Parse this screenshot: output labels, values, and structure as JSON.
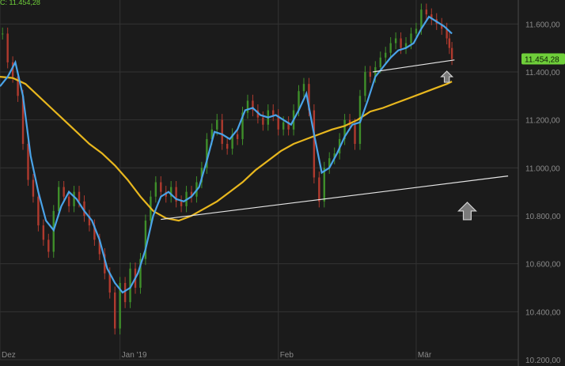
{
  "header": {
    "text": "C: 11.454,28"
  },
  "colors": {
    "background": "#1b1b1b",
    "grid": "#333333",
    "axis_text": "#8a8a8a",
    "candle_up": "#3f8f2a",
    "candle_down": "#b03a2e",
    "ma_fast": "#4aa3e8",
    "ma_slow": "#e8b71e",
    "trendline": "#e6e6e6",
    "last_price_bg": "#6fcf3a",
    "arrow_fill": "#7a7a7a",
    "arrow_stroke": "#d0d0d0"
  },
  "chart_data": {
    "type": "line",
    "grid": true,
    "ylim": [
      10200,
      11700
    ],
    "y_ticks": [
      "11.600,00",
      "11.400,00",
      "11.200,00",
      "11.000,00",
      "10.800,00",
      "10.600,00",
      "10.400,00",
      "10.200,00"
    ],
    "x_ticks": [
      {
        "label": "Dez",
        "t": 0
      },
      {
        "label": "Jan '19",
        "t": 47
      },
      {
        "label": "Feb",
        "t": 109
      },
      {
        "label": "Mär",
        "t": 163
      }
    ],
    "t_max": 203,
    "last_price": {
      "value": 11454.28,
      "label": "11.454,28"
    },
    "price_series": [
      [
        1,
        11560
      ],
      [
        3,
        11440
      ],
      [
        5,
        11380
      ],
      [
        7,
        11300
      ],
      [
        9,
        11100
      ],
      [
        11,
        10950
      ],
      [
        13,
        10880
      ],
      [
        15,
        10760
      ],
      [
        17,
        10700
      ],
      [
        19,
        10650
      ],
      [
        21,
        10820
      ],
      [
        23,
        10920
      ],
      [
        25,
        10880
      ],
      [
        27,
        10840
      ],
      [
        29,
        10900
      ],
      [
        31,
        10860
      ],
      [
        33,
        10800
      ],
      [
        35,
        10760
      ],
      [
        37,
        10700
      ],
      [
        39,
        10640
      ],
      [
        41,
        10560
      ],
      [
        43,
        10480
      ],
      [
        45,
        10330
      ],
      [
        47,
        10520
      ],
      [
        49,
        10440
      ],
      [
        51,
        10580
      ],
      [
        53,
        10500
      ],
      [
        55,
        10620
      ],
      [
        57,
        10780
      ],
      [
        59,
        10880
      ],
      [
        61,
        10940
      ],
      [
        63,
        10900
      ],
      [
        65,
        10880
      ],
      [
        67,
        10920
      ],
      [
        69,
        10860
      ],
      [
        71,
        10840
      ],
      [
        73,
        10900
      ],
      [
        75,
        10880
      ],
      [
        77,
        10940
      ],
      [
        79,
        11000
      ],
      [
        81,
        11120
      ],
      [
        83,
        11160
      ],
      [
        85,
        11200
      ],
      [
        87,
        11100
      ],
      [
        89,
        11080
      ],
      [
        91,
        11140
      ],
      [
        93,
        11120
      ],
      [
        95,
        11230
      ],
      [
        97,
        11280
      ],
      [
        99,
        11240
      ],
      [
        101,
        11210
      ],
      [
        103,
        11180
      ],
      [
        105,
        11240
      ],
      [
        107,
        11220
      ],
      [
        109,
        11160
      ],
      [
        111,
        11190
      ],
      [
        113,
        11160
      ],
      [
        115,
        11240
      ],
      [
        117,
        11320
      ],
      [
        119,
        11350
      ],
      [
        121,
        11240
      ],
      [
        123,
        10960
      ],
      [
        125,
        10860
      ],
      [
        127,
        11000
      ],
      [
        129,
        11040
      ],
      [
        131,
        11060
      ],
      [
        133,
        11120
      ],
      [
        135,
        11200
      ],
      [
        137,
        11180
      ],
      [
        139,
        11100
      ],
      [
        141,
        11300
      ],
      [
        143,
        11400
      ],
      [
        145,
        11380
      ],
      [
        147,
        11420
      ],
      [
        149,
        11460
      ],
      [
        151,
        11480
      ],
      [
        153,
        11520
      ],
      [
        155,
        11540
      ],
      [
        157,
        11500
      ],
      [
        159,
        11520
      ],
      [
        161,
        11560
      ],
      [
        163,
        11580
      ],
      [
        165,
        11660
      ],
      [
        167,
        11640
      ],
      [
        169,
        11620
      ],
      [
        171,
        11600
      ],
      [
        173,
        11580
      ],
      [
        175,
        11540
      ],
      [
        176,
        11500
      ],
      [
        177,
        11454
      ]
    ],
    "series": [
      {
        "values": [
          [
            0,
            11340
          ],
          [
            3,
            11380
          ],
          [
            6,
            11440
          ],
          [
            9,
            11300
          ],
          [
            12,
            11050
          ],
          [
            15,
            10900
          ],
          [
            18,
            10780
          ],
          [
            21,
            10740
          ],
          [
            24,
            10840
          ],
          [
            27,
            10900
          ],
          [
            30,
            10870
          ],
          [
            33,
            10820
          ],
          [
            36,
            10780
          ],
          [
            39,
            10700
          ],
          [
            42,
            10580
          ],
          [
            45,
            10520
          ],
          [
            48,
            10480
          ],
          [
            51,
            10500
          ],
          [
            54,
            10560
          ],
          [
            57,
            10660
          ],
          [
            60,
            10800
          ],
          [
            63,
            10880
          ],
          [
            66,
            10900
          ],
          [
            69,
            10870
          ],
          [
            72,
            10860
          ],
          [
            75,
            10880
          ],
          [
            78,
            10920
          ],
          [
            81,
            11030
          ],
          [
            84,
            11150
          ],
          [
            87,
            11140
          ],
          [
            90,
            11120
          ],
          [
            93,
            11160
          ],
          [
            96,
            11240
          ],
          [
            99,
            11250
          ],
          [
            102,
            11220
          ],
          [
            105,
            11210
          ],
          [
            108,
            11220
          ],
          [
            111,
            11200
          ],
          [
            114,
            11180
          ],
          [
            117,
            11240
          ],
          [
            120,
            11310
          ],
          [
            123,
            11140
          ],
          [
            126,
            10980
          ],
          [
            129,
            11000
          ],
          [
            132,
            11060
          ],
          [
            135,
            11130
          ],
          [
            138,
            11180
          ],
          [
            141,
            11190
          ],
          [
            144,
            11280
          ],
          [
            147,
            11380
          ],
          [
            150,
            11420
          ],
          [
            153,
            11460
          ],
          [
            156,
            11490
          ],
          [
            159,
            11500
          ],
          [
            162,
            11520
          ],
          [
            165,
            11580
          ],
          [
            168,
            11630
          ],
          [
            171,
            11610
          ],
          [
            174,
            11590
          ],
          [
            177,
            11560
          ]
        ]
      },
      {
        "values": [
          [
            0,
            11380
          ],
          [
            5,
            11375
          ],
          [
            10,
            11350
          ],
          [
            15,
            11300
          ],
          [
            20,
            11250
          ],
          [
            25,
            11200
          ],
          [
            30,
            11150
          ],
          [
            35,
            11100
          ],
          [
            40,
            11060
          ],
          [
            45,
            11010
          ],
          [
            50,
            10950
          ],
          [
            55,
            10880
          ],
          [
            60,
            10820
          ],
          [
            65,
            10790
          ],
          [
            70,
            10780
          ],
          [
            75,
            10800
          ],
          [
            80,
            10830
          ],
          [
            85,
            10860
          ],
          [
            90,
            10900
          ],
          [
            95,
            10940
          ],
          [
            100,
            10990
          ],
          [
            105,
            11030
          ],
          [
            110,
            11070
          ],
          [
            115,
            11100
          ],
          [
            120,
            11120
          ],
          [
            125,
            11140
          ],
          [
            130,
            11160
          ],
          [
            135,
            11175
          ],
          [
            140,
            11200
          ],
          [
            145,
            11235
          ],
          [
            150,
            11250
          ],
          [
            155,
            11270
          ],
          [
            160,
            11290
          ],
          [
            165,
            11310
          ],
          [
            170,
            11330
          ],
          [
            175,
            11350
          ],
          [
            177,
            11360
          ]
        ]
      }
    ],
    "trendlines": [
      {
        "points": [
          [
            63,
            10785
          ],
          [
            199,
            10966
          ]
        ]
      },
      {
        "points": [
          [
            146,
            11400
          ],
          [
            178,
            11450
          ]
        ]
      }
    ],
    "arrows": [
      {
        "t": 175,
        "value": 11380,
        "size": "small"
      },
      {
        "t": 183,
        "value": 10820,
        "size": "large"
      }
    ]
  }
}
